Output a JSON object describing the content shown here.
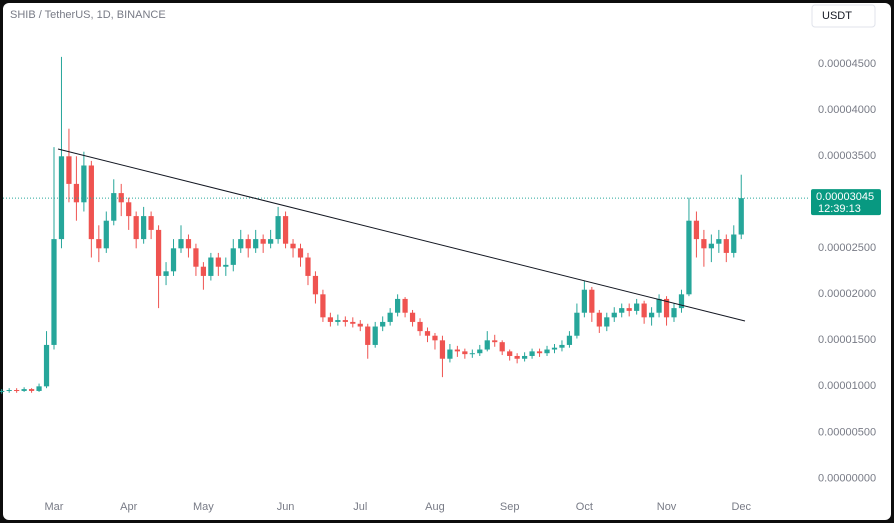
{
  "chart_data": {
    "type": "candlestick",
    "title": "SHIB / TetherUS, 1D, BINANCE",
    "currency": "USDT",
    "up_color": "#26a69a",
    "down_color": "#ef5350",
    "grid": false,
    "categories": [
      null,
      null,
      null,
      null,
      null,
      null,
      null,
      "Mar",
      null,
      null,
      null,
      null,
      null,
      null,
      null,
      null,
      null,
      "Apr",
      null,
      null,
      null,
      null,
      null,
      null,
      null,
      null,
      null,
      "May",
      null,
      null,
      null,
      null,
      null,
      null,
      null,
      null,
      null,
      null,
      "Jun",
      null,
      null,
      null,
      null,
      null,
      null,
      null,
      null,
      null,
      "Jul",
      null,
      null,
      null,
      null,
      null,
      null,
      null,
      null,
      null,
      "Aug",
      null,
      null,
      null,
      null,
      null,
      null,
      null,
      null,
      null,
      "Sep",
      null,
      null,
      null,
      null,
      null,
      null,
      null,
      null,
      null,
      "Oct",
      null,
      null,
      null,
      null,
      null,
      null,
      null,
      null,
      null,
      null,
      "Nov",
      null,
      null,
      null,
      null,
      null,
      null,
      null,
      null,
      null,
      "Dec"
    ],
    "open": [
      9.4e-06,
      9.5e-06,
      9.6e-06,
      9.5e-06,
      9.7e-06,
      9.5e-06,
      1e-05,
      1.45e-05,
      2.6e-05,
      3.5e-05,
      3.2e-05,
      3e-05,
      3.4e-05,
      2.6e-05,
      2.5e-05,
      2.8e-05,
      3.1e-05,
      3e-05,
      2.85e-05,
      2.6e-05,
      2.85e-05,
      2.7e-05,
      2.2e-05,
      2.25e-05,
      2.5e-05,
      2.6e-05,
      2.5e-05,
      2.3e-05,
      2.2e-05,
      2.4e-05,
      2.3e-05,
      2.32e-05,
      2.5e-05,
      2.6e-05,
      2.5e-05,
      2.6e-05,
      2.55e-05,
      2.6e-05,
      2.85e-05,
      2.55e-05,
      2.5e-05,
      2.4e-05,
      2.2e-05,
      2e-05,
      1.75e-05,
      1.7e-05,
      1.72e-05,
      1.7e-05,
      1.68e-05,
      1.65e-05,
      1.45e-05,
      1.65e-05,
      1.7e-05,
      1.8e-05,
      1.95e-05,
      1.8e-05,
      1.7e-05,
      1.6e-05,
      1.55e-05,
      1.5e-05,
      1.3e-05,
      1.4e-05,
      1.38e-05,
      1.35e-05,
      1.36e-05,
      1.4e-05,
      1.5e-05,
      1.48e-05,
      1.38e-05,
      1.33e-05,
      1.3e-05,
      1.33e-05,
      1.38e-05,
      1.36e-05,
      1.4e-05,
      1.42e-05,
      1.45e-05,
      1.55e-05,
      1.8e-05,
      2.05e-05,
      1.8e-05,
      1.65e-05,
      1.75e-05,
      1.8e-05,
      1.85e-05,
      1.82e-05,
      1.9e-05,
      1.75e-05,
      1.8e-05,
      1.95e-05,
      1.75e-05,
      1.85e-05,
      2e-05,
      2.8e-05,
      2.6e-05,
      2.5e-05,
      2.55e-05,
      2.6e-05,
      2.45e-05,
      2.65e-05
    ],
    "high": [
      9.7e-06,
      9.8e-06,
      9.8e-06,
      9.9e-06,
      9.8e-06,
      1.03e-05,
      1.6e-05,
      3.6e-05,
      4.58e-05,
      3.8e-05,
      3.5e-05,
      3.55e-05,
      3.45e-05,
      2.75e-05,
      2.9e-05,
      3.25e-05,
      3.2e-05,
      3.05e-05,
      2.9e-05,
      2.95e-05,
      2.9e-05,
      2.75e-05,
      2.35e-05,
      2.6e-05,
      2.75e-05,
      2.65e-05,
      2.55e-05,
      2.35e-05,
      2.45e-05,
      2.45e-05,
      2.4e-05,
      2.6e-05,
      2.7e-05,
      2.65e-05,
      2.7e-05,
      2.65e-05,
      2.7e-05,
      2.95e-05,
      2.9e-05,
      2.6e-05,
      2.55e-05,
      2.45e-05,
      2.25e-05,
      2.05e-05,
      1.8e-05,
      1.78e-05,
      1.76e-05,
      1.75e-05,
      1.72e-05,
      1.68e-05,
      1.7e-05,
      1.76e-05,
      1.85e-05,
      2e-05,
      1.97e-05,
      1.83e-05,
      1.74e-05,
      1.64e-05,
      1.58e-05,
      1.55e-05,
      1.46e-05,
      1.44e-05,
      1.41e-05,
      1.4e-05,
      1.45e-05,
      1.6e-05,
      1.56e-05,
      1.5e-05,
      1.4e-05,
      1.36e-05,
      1.37e-05,
      1.41e-05,
      1.41e-05,
      1.44e-05,
      1.46e-05,
      1.5e-05,
      1.6e-05,
      1.9e-05,
      2.15e-05,
      2.08e-05,
      1.83e-05,
      1.8e-05,
      1.86e-05,
      1.9e-05,
      1.9e-05,
      1.95e-05,
      1.93e-05,
      1.86e-05,
      2e-05,
      1.98e-05,
      1.9e-05,
      2.05e-05,
      3.05e-05,
      2.9e-05,
      2.7e-05,
      2.65e-05,
      2.7e-05,
      2.65e-05,
      2.75e-05,
      3.3e-05
    ],
    "low": [
      9.2e-06,
      9.3e-06,
      9.3e-06,
      9.4e-06,
      9.3e-06,
      9.4e-06,
      9.8e-06,
      1.4e-05,
      2.5e-05,
      3e-05,
      2.8e-05,
      2.9e-05,
      2.4e-05,
      2.35e-05,
      2.45e-05,
      2.75e-05,
      2.85e-05,
      2.7e-05,
      2.5e-05,
      2.55e-05,
      2.6e-05,
      1.85e-05,
      2.1e-05,
      2.2e-05,
      2.45e-05,
      2.4e-05,
      2.2e-05,
      2.05e-05,
      2.15e-05,
      2.2e-05,
      2.2e-05,
      2.25e-05,
      2.45e-05,
      2.4e-05,
      2.45e-05,
      2.45e-05,
      2.5e-05,
      2.55e-05,
      2.5e-05,
      2.4e-05,
      2.3e-05,
      2.1e-05,
      1.9e-05,
      1.7e-05,
      1.65e-05,
      1.66e-05,
      1.65e-05,
      1.64e-05,
      1.6e-05,
      1.3e-05,
      1.42e-05,
      1.6e-05,
      1.66e-05,
      1.76e-05,
      1.75e-05,
      1.65e-05,
      1.55e-05,
      1.48e-05,
      1.4e-05,
      1.1e-05,
      1.26e-05,
      1.32e-05,
      1.3e-05,
      1.31e-05,
      1.33e-05,
      1.38e-05,
      1.43e-05,
      1.34e-05,
      1.28e-05,
      1.25e-05,
      1.27e-05,
      1.3e-05,
      1.32e-05,
      1.33e-05,
      1.36e-05,
      1.38e-05,
      1.42e-05,
      1.52e-05,
      1.75e-05,
      1.7e-05,
      1.58e-05,
      1.6e-05,
      1.7e-05,
      1.75e-05,
      1.76e-05,
      1.78e-05,
      1.68e-05,
      1.66e-05,
      1.75e-05,
      1.66e-05,
      1.7e-05,
      1.8e-05,
      1.98e-05,
      2.4e-05,
      2.3e-05,
      2.35e-05,
      2.45e-05,
      2.35e-05,
      2.4e-05,
      2.6e-05
    ],
    "close": [
      9.5e-06,
      9.6e-06,
      9.5e-06,
      9.7e-06,
      9.5e-06,
      1e-05,
      1.45e-05,
      2.6e-05,
      3.5e-05,
      3.2e-05,
      3e-05,
      3.4e-05,
      2.6e-05,
      2.5e-05,
      2.8e-05,
      3.1e-05,
      3e-05,
      2.85e-05,
      2.6e-05,
      2.85e-05,
      2.7e-05,
      2.2e-05,
      2.25e-05,
      2.5e-05,
      2.6e-05,
      2.5e-05,
      2.3e-05,
      2.2e-05,
      2.4e-05,
      2.3e-05,
      2.32e-05,
      2.5e-05,
      2.6e-05,
      2.5e-05,
      2.6e-05,
      2.55e-05,
      2.6e-05,
      2.85e-05,
      2.55e-05,
      2.5e-05,
      2.4e-05,
      2.2e-05,
      2e-05,
      1.75e-05,
      1.7e-05,
      1.72e-05,
      1.7e-05,
      1.68e-05,
      1.65e-05,
      1.45e-05,
      1.65e-05,
      1.7e-05,
      1.8e-05,
      1.95e-05,
      1.8e-05,
      1.7e-05,
      1.6e-05,
      1.55e-05,
      1.5e-05,
      1.3e-05,
      1.4e-05,
      1.38e-05,
      1.35e-05,
      1.36e-05,
      1.4e-05,
      1.5e-05,
      1.48e-05,
      1.38e-05,
      1.33e-05,
      1.3e-05,
      1.33e-05,
      1.38e-05,
      1.36e-05,
      1.4e-05,
      1.42e-05,
      1.45e-05,
      1.55e-05,
      1.8e-05,
      2.05e-05,
      1.8e-05,
      1.65e-05,
      1.75e-05,
      1.8e-05,
      1.85e-05,
      1.82e-05,
      1.9e-05,
      1.75e-05,
      1.8e-05,
      1.95e-05,
      1.75e-05,
      1.85e-05,
      2e-05,
      2.8e-05,
      2.6e-05,
      2.5e-05,
      2.55e-05,
      2.6e-05,
      2.45e-05,
      2.65e-05,
      3.045e-05
    ],
    "ylim": [
      -1.7e-06,
      5.155e-05
    ],
    "yticks": [
      {
        "value": 4.5e-05,
        "label": "0.00004500"
      },
      {
        "value": 4e-05,
        "label": "0.00004000"
      },
      {
        "value": 3.5e-05,
        "label": "0.00003500"
      },
      {
        "value": 2.5e-05,
        "label": "0.00002500"
      },
      {
        "value": 2e-05,
        "label": "0.00002000"
      },
      {
        "value": 1.5e-05,
        "label": "0.00001500"
      },
      {
        "value": 1e-05,
        "label": "0.00001000"
      },
      {
        "value": 5e-06,
        "label": "0.00000500"
      },
      {
        "value": 0,
        "label": "0.00000000"
      }
    ],
    "last_price": {
      "value": 3.045e-05,
      "label": "0.00003045"
    },
    "countdown": "12:39:13"
  }
}
